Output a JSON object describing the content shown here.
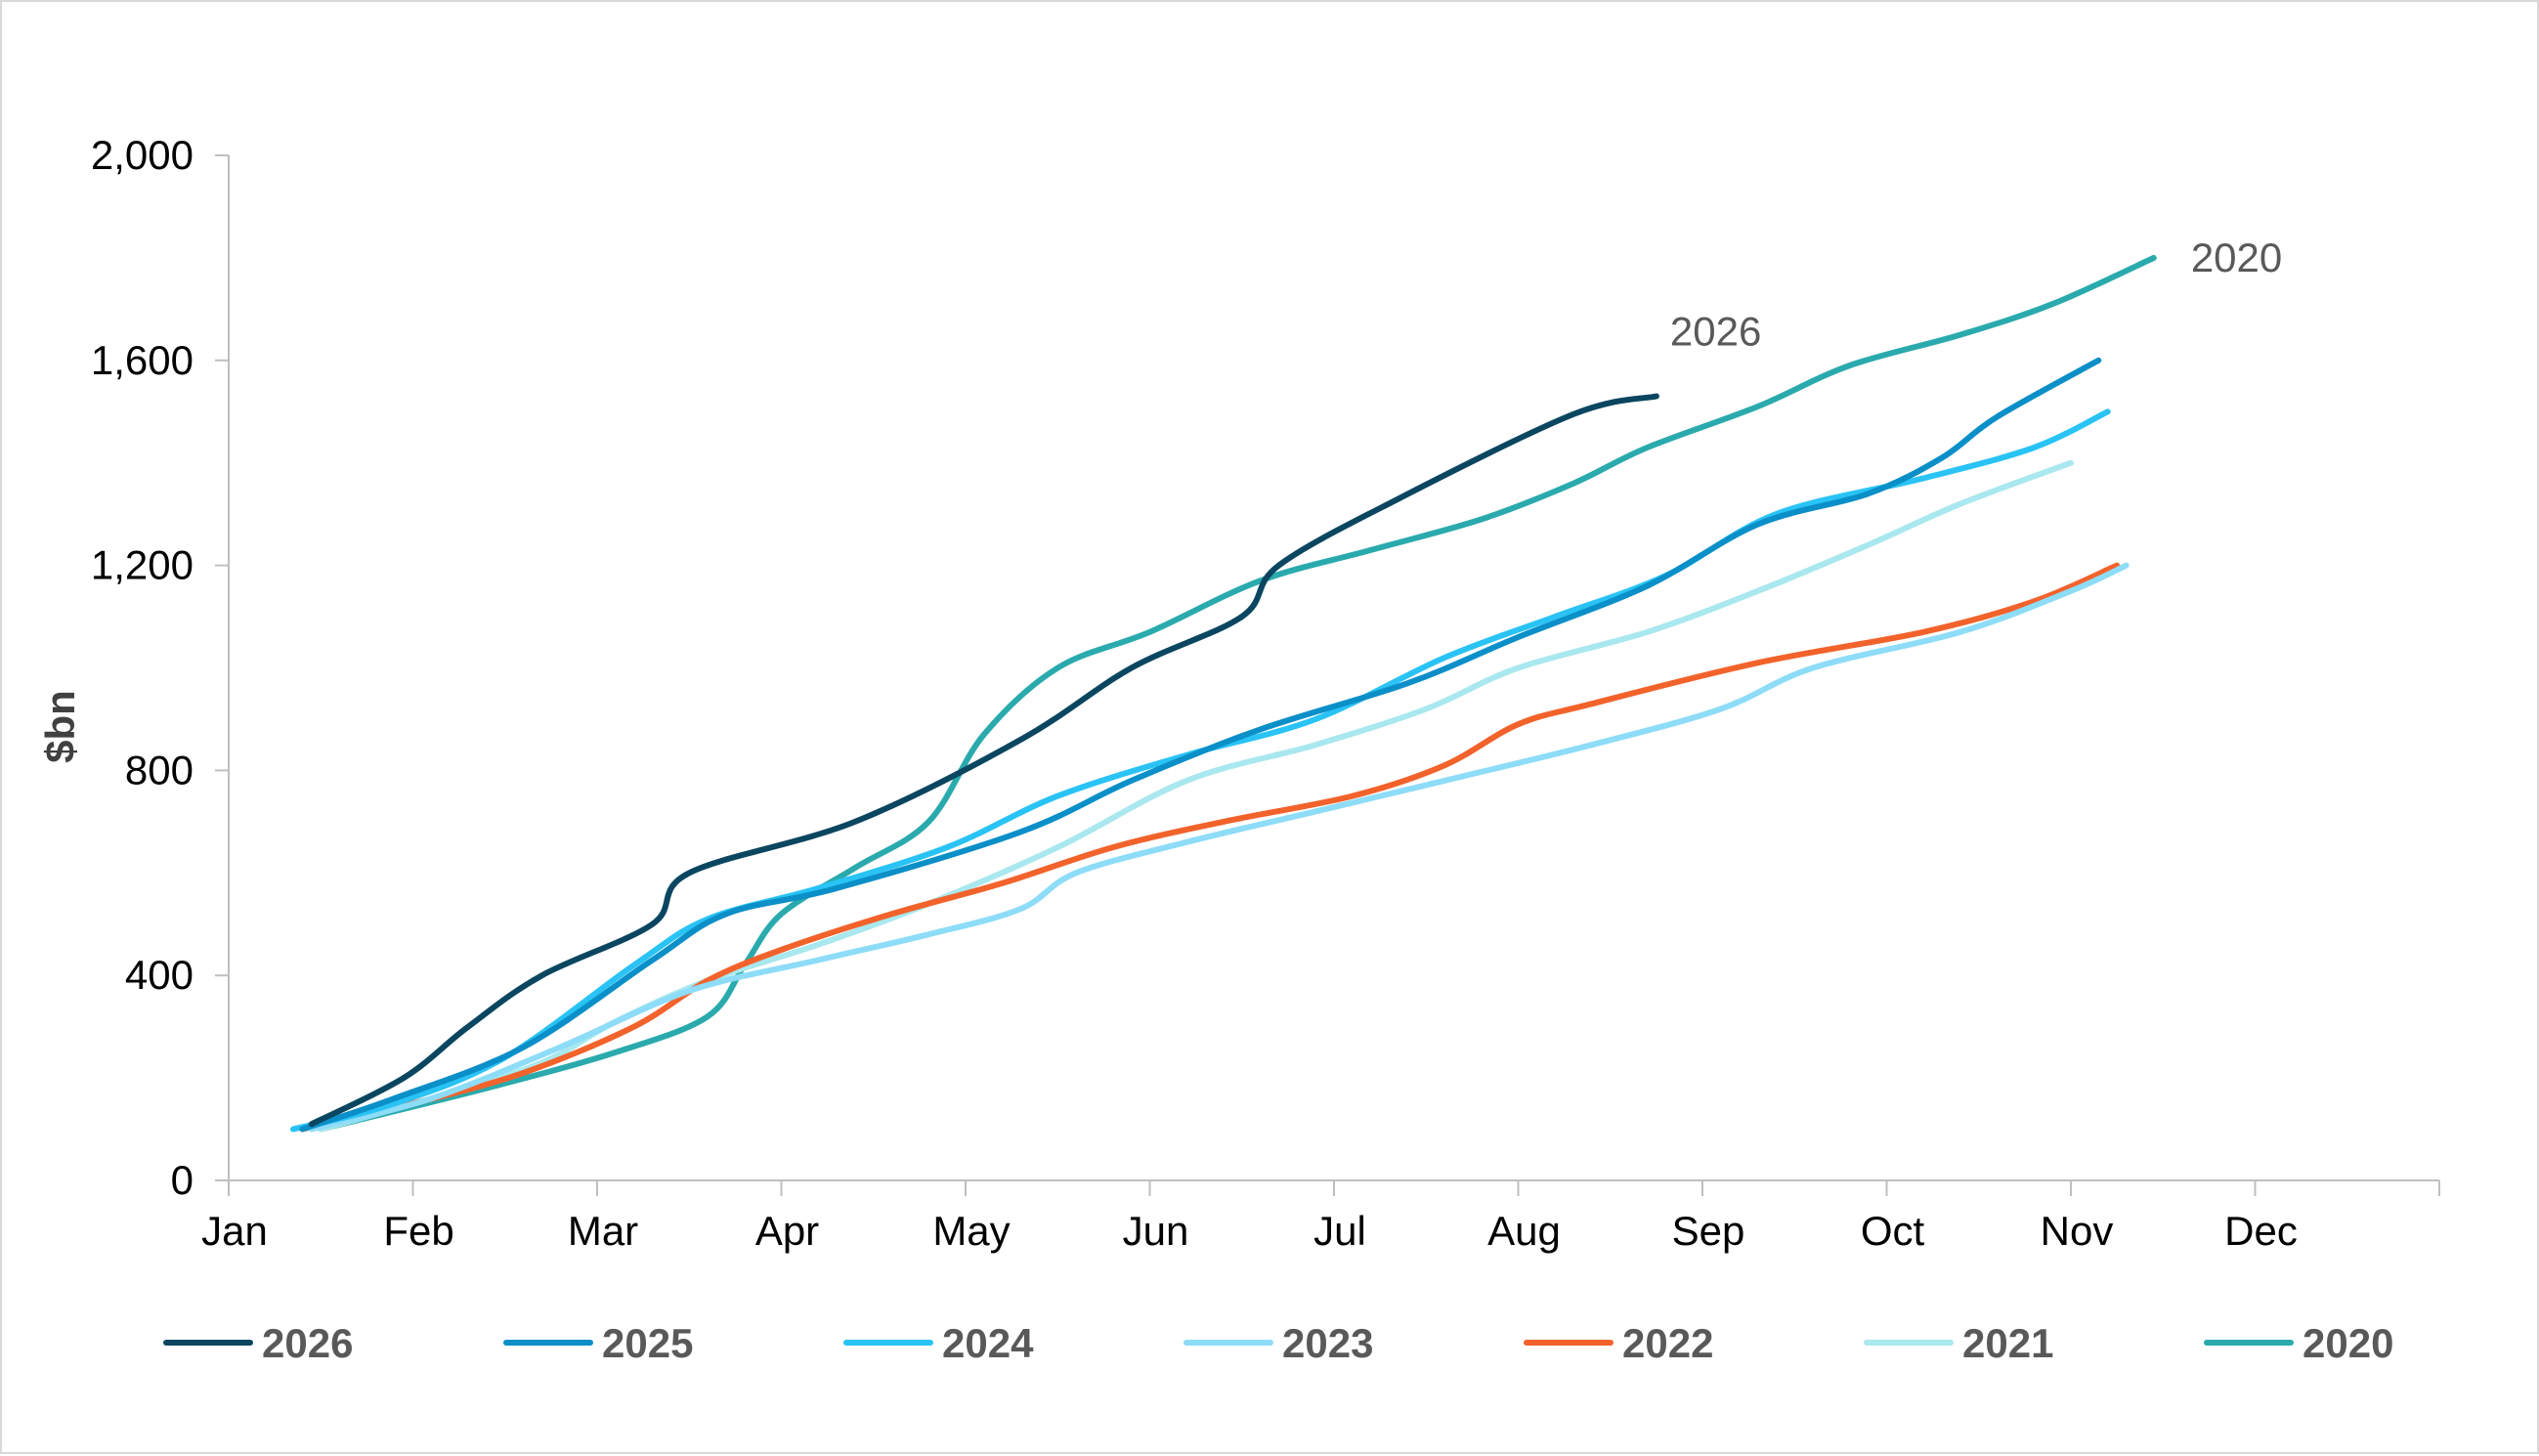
{
  "chart_data": {
    "type": "line",
    "title": "",
    "xlabel": "",
    "ylabel": "$bn",
    "ylim": [
      0,
      2000
    ],
    "yticks": [
      0,
      400,
      800,
      1200,
      1600,
      2000
    ],
    "ytick_labels": [
      "0",
      "400",
      "800",
      "1,200",
      "1,600",
      "2,000"
    ],
    "xlim": [
      0,
      12
    ],
    "xtick_labels": [
      "Jan",
      "Feb",
      "Mar",
      "Apr",
      "May",
      "Jun",
      "Jul",
      "Aug",
      "Sep",
      "Oct",
      "Nov",
      "Dec"
    ],
    "grid": false,
    "legend_position": "bottom",
    "end_labels": [
      {
        "series": "2026",
        "text": "2026"
      },
      {
        "series": "2020",
        "text": "2020"
      }
    ],
    "series": [
      {
        "name": "2026",
        "color": "#0b4660",
        "x": [
          0.45,
          0.95,
          1.3,
          1.7,
          2.3,
          2.5,
          3.4,
          4.3,
          4.9,
          5.5,
          5.7,
          6.35,
          7.3,
          7.75
        ],
        "y": [
          110,
          200,
          300,
          400,
          500,
          600,
          700,
          860,
          1000,
          1100,
          1200,
          1330,
          1495,
          1530
        ]
      },
      {
        "name": "2025",
        "color": "#0a8fc8",
        "x": [
          0.4,
          0.9,
          1.6,
          2.3,
          2.7,
          3.3,
          4.3,
          4.9,
          5.6,
          6.4,
          7.0,
          7.7,
          8.3,
          8.9,
          9.3,
          9.6,
          10.15
        ],
        "y": [
          100,
          160,
          260,
          430,
          520,
          570,
          680,
          780,
          880,
          970,
          1060,
          1160,
          1280,
          1340,
          1410,
          1490,
          1600
        ]
      },
      {
        "name": "2024",
        "color": "#29c3f5",
        "x": [
          0.35,
          0.9,
          1.5,
          2.2,
          2.6,
          3.2,
          3.9,
          4.5,
          5.2,
          5.9,
          6.6,
          7.2,
          7.8,
          8.4,
          9.2,
          9.8,
          10.2
        ],
        "y": [
          100,
          150,
          240,
          420,
          510,
          570,
          650,
          750,
          830,
          900,
          1020,
          1100,
          1180,
          1300,
          1370,
          1430,
          1500
        ]
      },
      {
        "name": "2023",
        "color": "#8ddcf8",
        "x": [
          0.45,
          1.1,
          1.8,
          2.5,
          3.2,
          3.8,
          4.3,
          4.6,
          5.2,
          5.9,
          6.6,
          7.4,
          8.1,
          8.6,
          9.4,
          10.0,
          10.3
        ],
        "y": [
          100,
          160,
          260,
          370,
          430,
          480,
          530,
          600,
          660,
          720,
          780,
          850,
          920,
          1000,
          1070,
          1150,
          1200
        ]
      },
      {
        "name": "2022",
        "color": "#f2622b",
        "x": [
          0.4,
          1.0,
          1.6,
          2.2,
          2.6,
          3.0,
          3.6,
          4.2,
          4.8,
          5.4,
          6.1,
          6.6,
          7.0,
          7.4,
          8.3,
          9.2,
          9.8,
          10.25
        ],
        "y": [
          100,
          150,
          210,
          300,
          390,
          450,
          520,
          580,
          650,
          700,
          750,
          810,
          890,
          930,
          1010,
          1070,
          1130,
          1200
        ]
      },
      {
        "name": "2021",
        "color": "#a8e8ee",
        "x": [
          0.5,
          1.1,
          1.7,
          2.1,
          2.6,
          3.2,
          3.8,
          4.5,
          5.2,
          5.9,
          6.5,
          7.0,
          7.7,
          8.3,
          8.9,
          9.4,
          10.0
        ],
        "y": [
          100,
          160,
          230,
          310,
          390,
          460,
          540,
          650,
          780,
          850,
          920,
          1000,
          1070,
          1150,
          1240,
          1320,
          1400
        ]
      },
      {
        "name": "2020",
        "color": "#2aaaad",
        "x": [
          0.5,
          1.4,
          2.1,
          2.6,
          2.8,
          3.0,
          3.4,
          3.8,
          4.1,
          4.5,
          5.0,
          5.6,
          6.2,
          6.8,
          7.3,
          7.7,
          8.3,
          8.8,
          9.4,
          9.9,
          10.45
        ],
        "y": [
          100,
          180,
          250,
          320,
          420,
          520,
          610,
          700,
          870,
          1000,
          1070,
          1170,
          1230,
          1290,
          1360,
          1430,
          1510,
          1590,
          1650,
          1710,
          1800
        ]
      }
    ]
  }
}
